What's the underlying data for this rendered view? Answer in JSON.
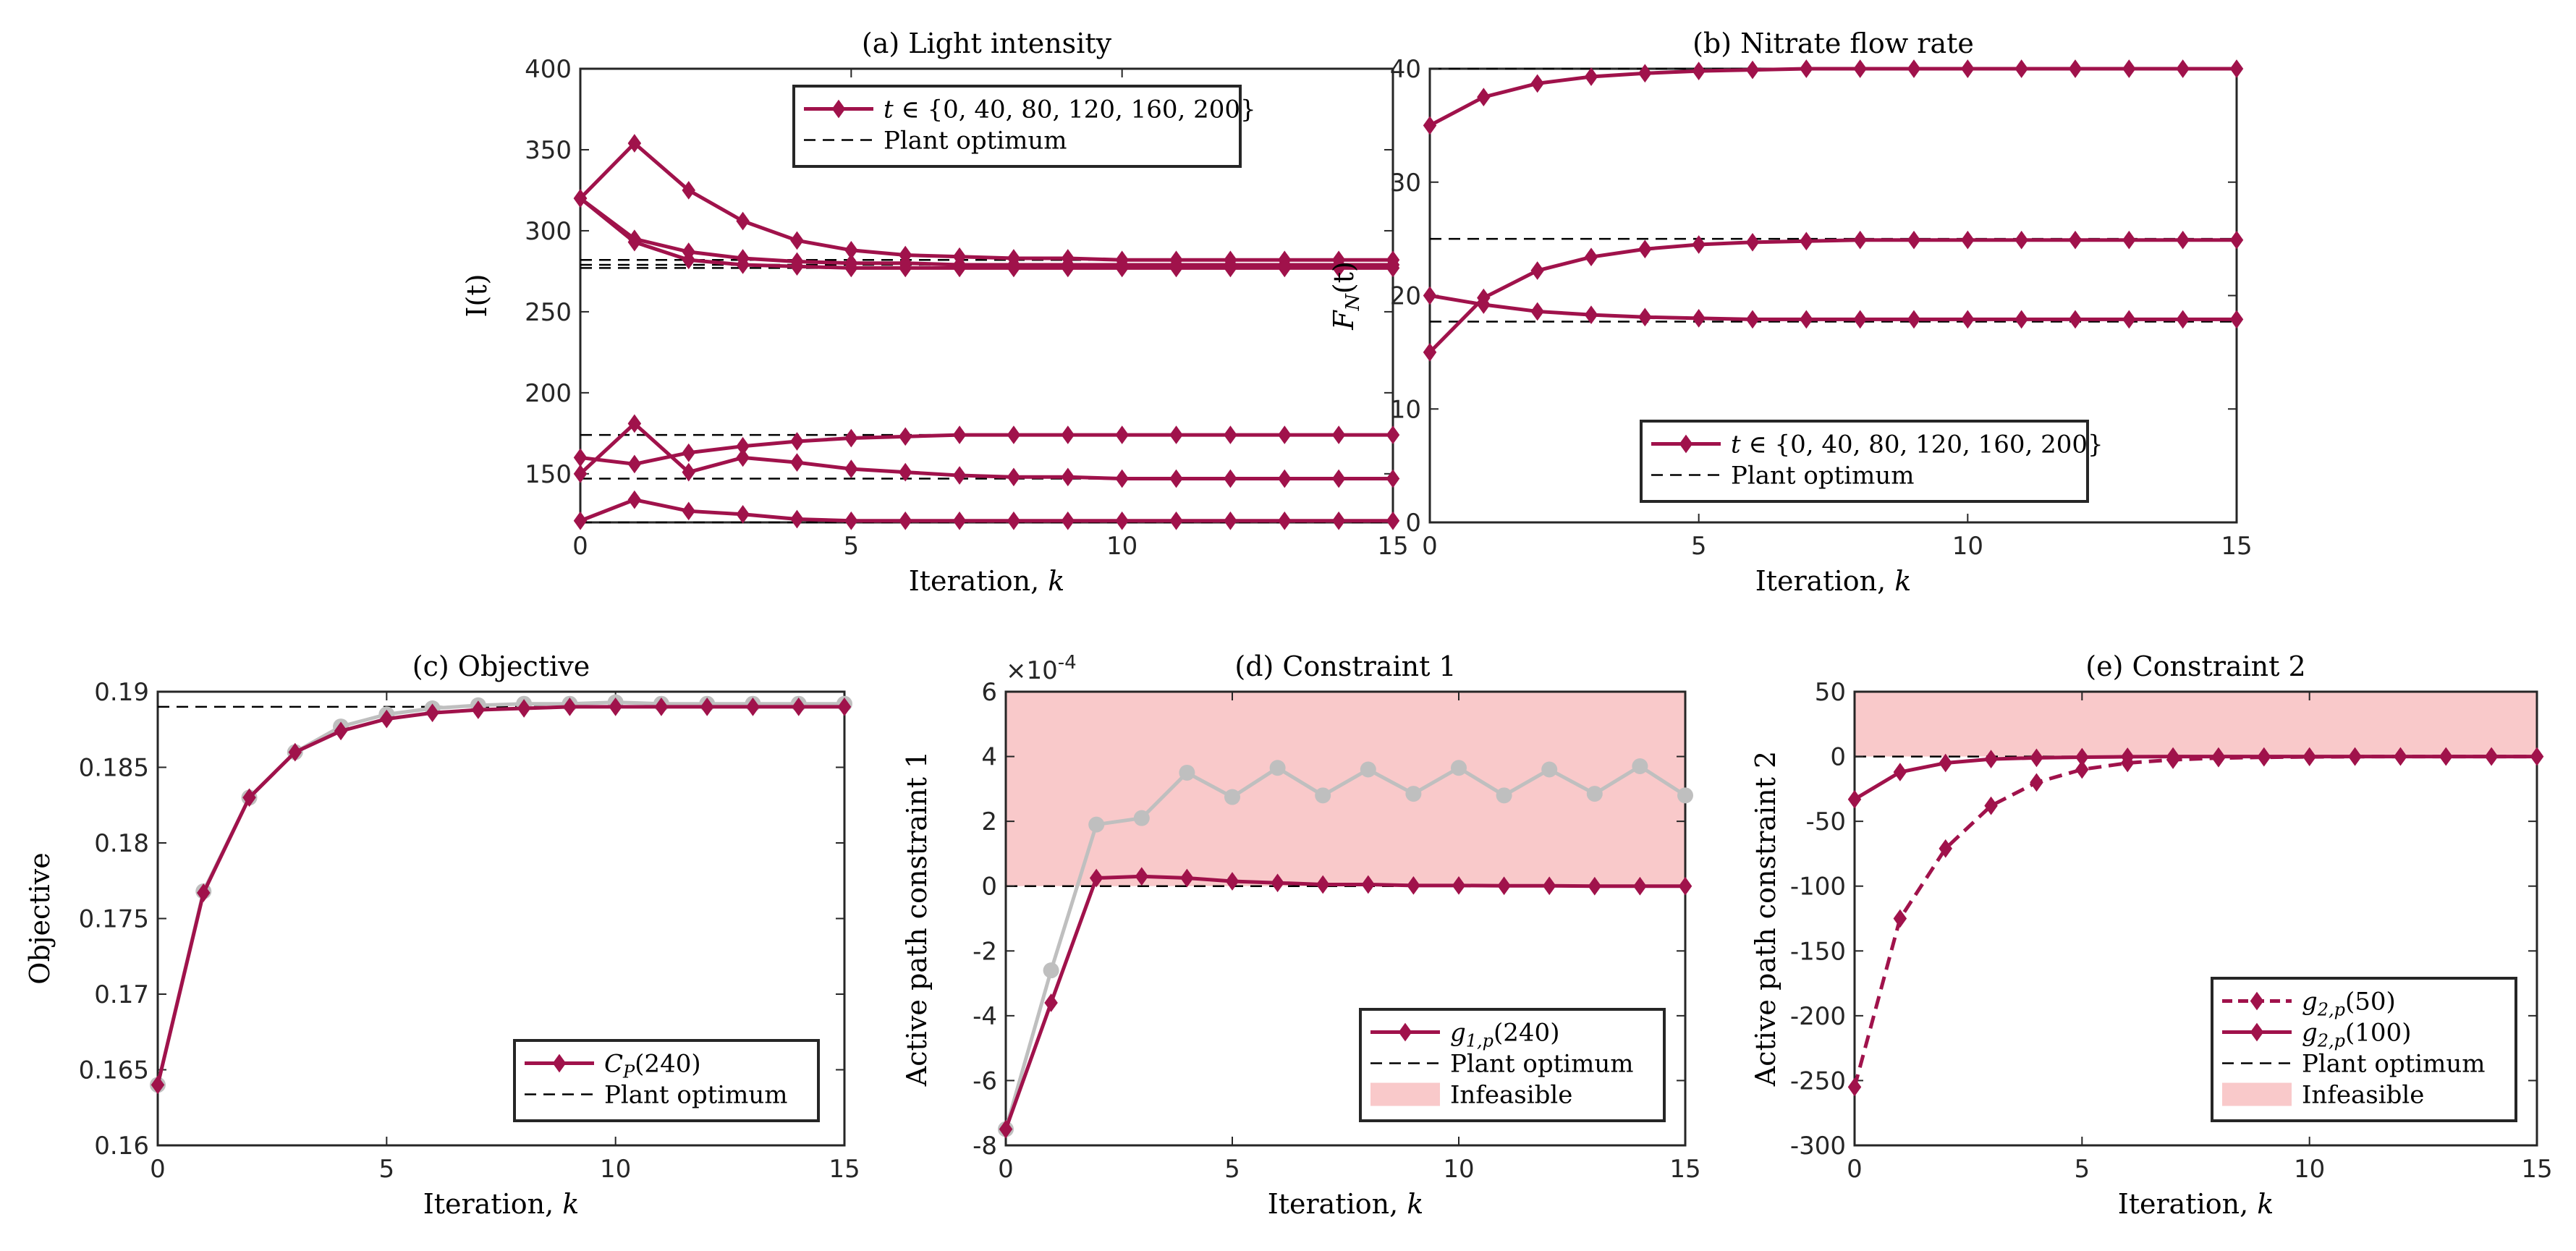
{
  "colors": {
    "series": "#A0124B",
    "gray": "#BFBFBF",
    "infeasible": "#F9C9CA",
    "optimum": "#000000"
  },
  "chart_data": [
    {
      "id": "a",
      "type": "line",
      "title": "(a) Light intensity",
      "xlabel": "Iteration, k",
      "ylabel": "I(t)",
      "xlim": [
        0,
        15
      ],
      "ylim": [
        120,
        400
      ],
      "xticks": [
        "0",
        "5",
        "10",
        "15"
      ],
      "yticks": [
        "150",
        "200",
        "250",
        "300",
        "350",
        "400"
      ],
      "legend": {
        "position": "top-right",
        "entries": [
          "t ∈ {0, 40, 80, 120, 160, 200}",
          "Plant optimum"
        ]
      },
      "reference_lines": [
        282,
        279,
        277,
        174,
        147,
        120
      ],
      "series": [
        {
          "name": "t=0",
          "values": [
            320,
            354,
            325,
            306,
            294,
            288,
            285,
            284,
            283,
            283,
            282,
            282,
            282,
            282,
            282,
            282
          ]
        },
        {
          "name": "t=40",
          "values": [
            320,
            295,
            287,
            283,
            281,
            280,
            280,
            279,
            279,
            279,
            279,
            279,
            279,
            279,
            279,
            279
          ]
        },
        {
          "name": "t=80",
          "values": [
            320,
            293,
            282,
            279,
            278,
            277,
            277,
            277,
            277,
            277,
            277,
            277,
            277,
            277,
            277,
            277
          ]
        },
        {
          "name": "t=120",
          "values": [
            150,
            181,
            151,
            160,
            157,
            153,
            151,
            149,
            148,
            148,
            147,
            147,
            147,
            147,
            147,
            147
          ]
        },
        {
          "name": "t=160",
          "values": [
            160,
            156,
            163,
            167,
            170,
            172,
            173,
            174,
            174,
            174,
            174,
            174,
            174,
            174,
            174,
            174
          ]
        },
        {
          "name": "t=200",
          "values": [
            121,
            134,
            127,
            125,
            122,
            121,
            121,
            121,
            121,
            121,
            121,
            121,
            121,
            121,
            121,
            121
          ]
        }
      ]
    },
    {
      "id": "b",
      "type": "line",
      "title": "(b) Nitrate flow rate",
      "xlabel": "Iteration, k",
      "ylabel": "F_N(t)",
      "xlim": [
        0,
        15
      ],
      "ylim": [
        0,
        40
      ],
      "xticks": [
        "0",
        "5",
        "10",
        "15"
      ],
      "yticks": [
        "0",
        "10",
        "20",
        "30",
        "40"
      ],
      "legend": {
        "position": "bottom-right",
        "entries": [
          "t ∈ {0, 40, 80, 120, 160, 200}",
          "Plant optimum"
        ]
      },
      "reference_lines": [
        40,
        25,
        17.7
      ],
      "series": [
        {
          "name": "upper",
          "values": [
            35,
            37.5,
            38.7,
            39.3,
            39.6,
            39.8,
            39.9,
            40,
            40,
            40,
            40,
            40,
            40,
            40,
            40,
            40
          ]
        },
        {
          "name": "middle",
          "values": [
            15,
            19.8,
            22.2,
            23.4,
            24.1,
            24.5,
            24.7,
            24.8,
            24.9,
            24.9,
            24.9,
            24.9,
            24.9,
            24.9,
            24.9,
            24.9
          ]
        },
        {
          "name": "lower",
          "values": [
            20,
            19.2,
            18.6,
            18.3,
            18.1,
            18,
            17.9,
            17.9,
            17.9,
            17.9,
            17.9,
            17.9,
            17.9,
            17.9,
            17.9,
            17.9
          ]
        }
      ]
    },
    {
      "id": "c",
      "type": "line",
      "title": "(c) Objective",
      "xlabel": "Iteration, k",
      "ylabel": "Objective",
      "xlim": [
        0,
        15
      ],
      "ylim": [
        0.16,
        0.19
      ],
      "xticks": [
        "0",
        "5",
        "10",
        "15"
      ],
      "yticks": [
        "0.16",
        "0.165",
        "0.17",
        "0.175",
        "0.18",
        "0.185",
        "0.19"
      ],
      "legend": {
        "position": "bottom-right",
        "entries": [
          "C_P(240)",
          "Plant optimum"
        ]
      },
      "reference_lines": [
        0.189
      ],
      "gray_values": [
        0.164,
        0.1768,
        0.183,
        0.186,
        0.1877,
        0.1885,
        0.1889,
        0.1891,
        0.1892,
        0.1892,
        0.1893,
        0.1892,
        0.1892,
        0.1892,
        0.1892,
        0.1892
      ],
      "series": [
        {
          "name": "C_P(240)",
          "values": [
            0.164,
            0.1767,
            0.183,
            0.186,
            0.1874,
            0.1882,
            0.1886,
            0.1888,
            0.1889,
            0.189,
            0.189,
            0.189,
            0.189,
            0.189,
            0.189,
            0.189
          ]
        }
      ]
    },
    {
      "id": "d",
      "type": "line",
      "title": "(d) Constraint 1",
      "xlabel": "Iteration, k",
      "ylabel": "Active path constraint 1",
      "multiplier": "×10-4",
      "xlim": [
        0,
        15
      ],
      "ylim": [
        -8,
        6
      ],
      "xticks": [
        "0",
        "5",
        "10",
        "15"
      ],
      "yticks": [
        "-8",
        "-6",
        "-4",
        "-2",
        "0",
        "2",
        "4",
        "6"
      ],
      "legend": {
        "position": "bottom-right",
        "entries": [
          "g_1,p(240)",
          "Plant optimum",
          "Infeasible"
        ]
      },
      "infeasible_range": [
        0,
        6
      ],
      "reference_lines": [
        0
      ],
      "gray_values": [
        -7.5,
        -2.6,
        1.9,
        2.1,
        3.5,
        2.75,
        3.65,
        2.8,
        3.6,
        2.85,
        3.65,
        2.8,
        3.6,
        2.85,
        3.7,
        2.8
      ],
      "series": [
        {
          "name": "g_1,p(240)",
          "values": [
            -7.5,
            -3.6,
            0.25,
            0.3,
            0.25,
            0.15,
            0.1,
            0.05,
            0.05,
            0.02,
            0.02,
            0.01,
            0.01,
            0,
            0,
            0
          ]
        }
      ]
    },
    {
      "id": "e",
      "type": "line",
      "title": "(e) Constraint 2",
      "xlabel": "Iteration, k",
      "ylabel": "Active path constraint 2",
      "xlim": [
        0,
        15
      ],
      "ylim": [
        -300,
        50
      ],
      "xticks": [
        "0",
        "5",
        "10",
        "15"
      ],
      "yticks": [
        "-300",
        "-250",
        "-200",
        "-150",
        "-100",
        "-50",
        "0",
        "50"
      ],
      "legend": {
        "position": "bottom-right",
        "entries": [
          "g_2,p(50)",
          "g_2,p(100)",
          "Plant optimum",
          "Infeasible"
        ]
      },
      "infeasible_range": [
        0,
        50
      ],
      "reference_lines": [
        0
      ],
      "series": [
        {
          "name": "g_2,p(50)",
          "dashed": true,
          "values": [
            -255,
            -125,
            -71,
            -38,
            -20,
            -10,
            -5,
            -2.5,
            -1.2,
            -0.6,
            -0.3,
            -0.1,
            0,
            0,
            0,
            0
          ]
        },
        {
          "name": "g_2,p(100)",
          "dashed": false,
          "values": [
            -33,
            -12,
            -5,
            -2,
            -1,
            -0.5,
            -0.2,
            0,
            0,
            0,
            0,
            0,
            0,
            0,
            0,
            0
          ]
        }
      ]
    }
  ]
}
